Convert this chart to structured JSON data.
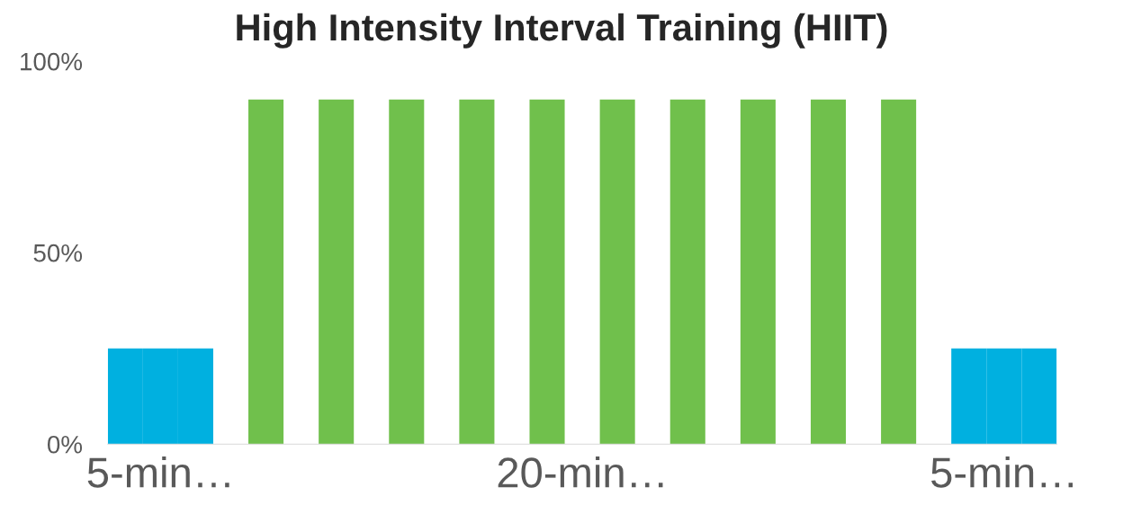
{
  "chart_data": {
    "type": "bar",
    "title": "High Intensity Interval Training (HIIT)",
    "categories": [
      null,
      "5-min…",
      null,
      null,
      null,
      null,
      null,
      null,
      null,
      null,
      null,
      null,
      null,
      "20-min…",
      null,
      null,
      null,
      null,
      null,
      null,
      null,
      null,
      null,
      null,
      null,
      "5-min…",
      null
    ],
    "values": [
      25,
      25,
      25,
      null,
      90,
      null,
      90,
      null,
      90,
      null,
      90,
      null,
      90,
      null,
      90,
      null,
      90,
      null,
      90,
      null,
      90,
      null,
      90,
      null,
      25,
      25,
      25
    ],
    "colors": [
      "#00b0e0",
      "#00b0e0",
      "#00b0e0",
      "#70c04c",
      "#70c04c",
      "#70c04c",
      "#70c04c",
      "#70c04c",
      "#70c04c",
      "#70c04c",
      "#70c04c",
      "#70c04c",
      "#70c04c",
      "#70c04c",
      "#70c04c",
      "#70c04c",
      "#70c04c",
      "#70c04c",
      "#70c04c",
      "#70c04c",
      "#70c04c",
      "#70c04c",
      "#70c04c",
      "#70c04c",
      "#00b0e0",
      "#00b0e0",
      "#00b0e0"
    ],
    "ylim": [
      0,
      100
    ],
    "yticks": [
      {
        "value": 0,
        "label": "0%"
      },
      {
        "value": 50,
        "label": "50%"
      },
      {
        "value": 100,
        "label": "100%"
      }
    ],
    "grid": false,
    "legend": false
  }
}
